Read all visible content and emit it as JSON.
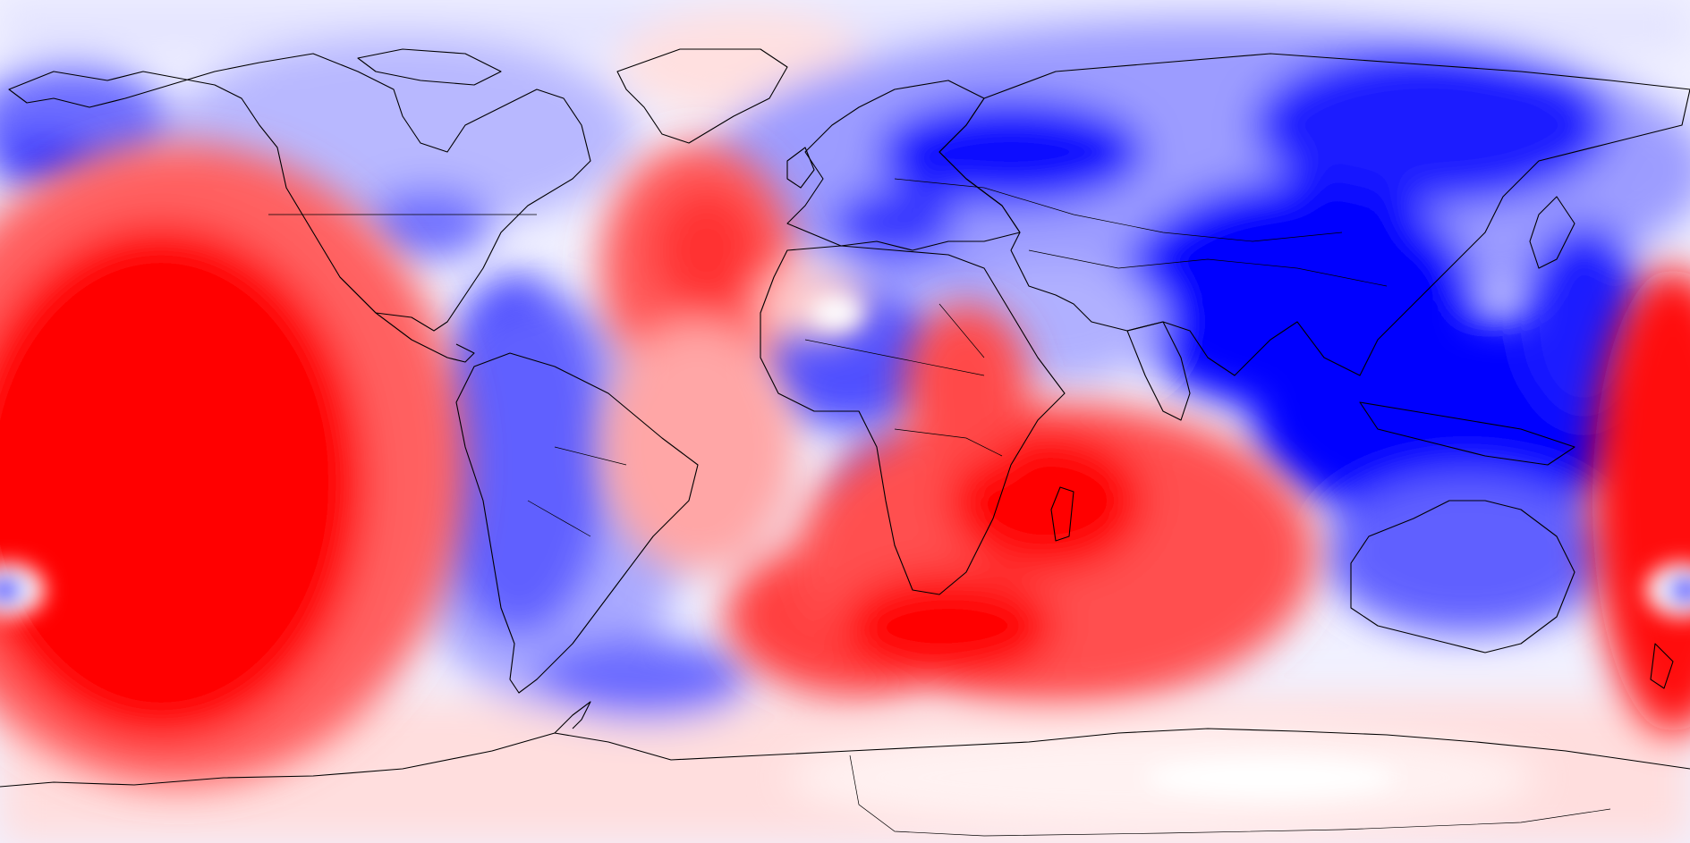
{
  "map": {
    "projection": "equirectangular",
    "longitude_range": [
      -180,
      180
    ],
    "latitude_range": [
      -90,
      90
    ],
    "field_kind": "diverging anomaly field",
    "colors": {
      "positive_strong": "#ff0000",
      "positive_mid": "#ff7070",
      "positive_light": "#ffd2d2",
      "neutral": "#ffffff",
      "negative_light": "#d8d8ff",
      "negative_mid": "#7a7aff",
      "negative_strong": "#0000ff",
      "coastline": "#000000"
    },
    "features": [
      {
        "id": "central-pacific-high",
        "sign": "positive",
        "strength": 1.0,
        "lon": -160,
        "lat": -15
      },
      {
        "id": "west-pacific-high",
        "sign": "positive",
        "strength": 0.85,
        "lon": 175,
        "lat": -20
      },
      {
        "id": "south-indian-ocean-high",
        "sign": "positive",
        "strength": 0.9,
        "lon": 65,
        "lat": -40
      },
      {
        "id": "south-atlantic-high",
        "sign": "positive",
        "strength": 0.75,
        "lon": 0,
        "lat": -40
      },
      {
        "id": "north-atlantic-high",
        "sign": "positive",
        "strength": 0.65,
        "lon": -28,
        "lat": 35
      },
      {
        "id": "east-africa-high",
        "sign": "positive",
        "strength": 0.6,
        "lon": 40,
        "lat": -5
      },
      {
        "id": "antarctic-light-high",
        "sign": "positive",
        "strength": 0.3,
        "lon": 60,
        "lat": -82
      },
      {
        "id": "south-america-low",
        "sign": "negative",
        "strength": 1.0,
        "lon": -68,
        "lat": -15
      },
      {
        "id": "southeast-asia-low",
        "sign": "negative",
        "strength": 1.0,
        "lon": 110,
        "lat": 5
      },
      {
        "id": "east-asia-low",
        "sign": "negative",
        "strength": 0.9,
        "lon": 110,
        "lat": 40
      },
      {
        "id": "australia-low",
        "sign": "negative",
        "strength": 0.75,
        "lon": 140,
        "lat": -25
      },
      {
        "id": "scandinavia-low",
        "sign": "negative",
        "strength": 0.85,
        "lon": 20,
        "lat": 63
      },
      {
        "id": "alps-low",
        "sign": "negative",
        "strength": 0.75,
        "lon": 10,
        "lat": 46
      },
      {
        "id": "north-america-low",
        "sign": "negative",
        "strength": 0.45,
        "lon": -100,
        "lat": 50
      },
      {
        "id": "alaska-low",
        "sign": "negative",
        "strength": 0.6,
        "lon": -170,
        "lat": 65
      },
      {
        "id": "west-africa-low",
        "sign": "negative",
        "strength": 0.5,
        "lon": 0,
        "lat": 10
      },
      {
        "id": "southern-ocean-atlantic-low",
        "sign": "negative",
        "strength": 0.55,
        "lon": -40,
        "lat": -58
      },
      {
        "id": "central-asia-low",
        "sign": "negative",
        "strength": 0.5,
        "lon": 60,
        "lat": 40
      }
    ]
  }
}
